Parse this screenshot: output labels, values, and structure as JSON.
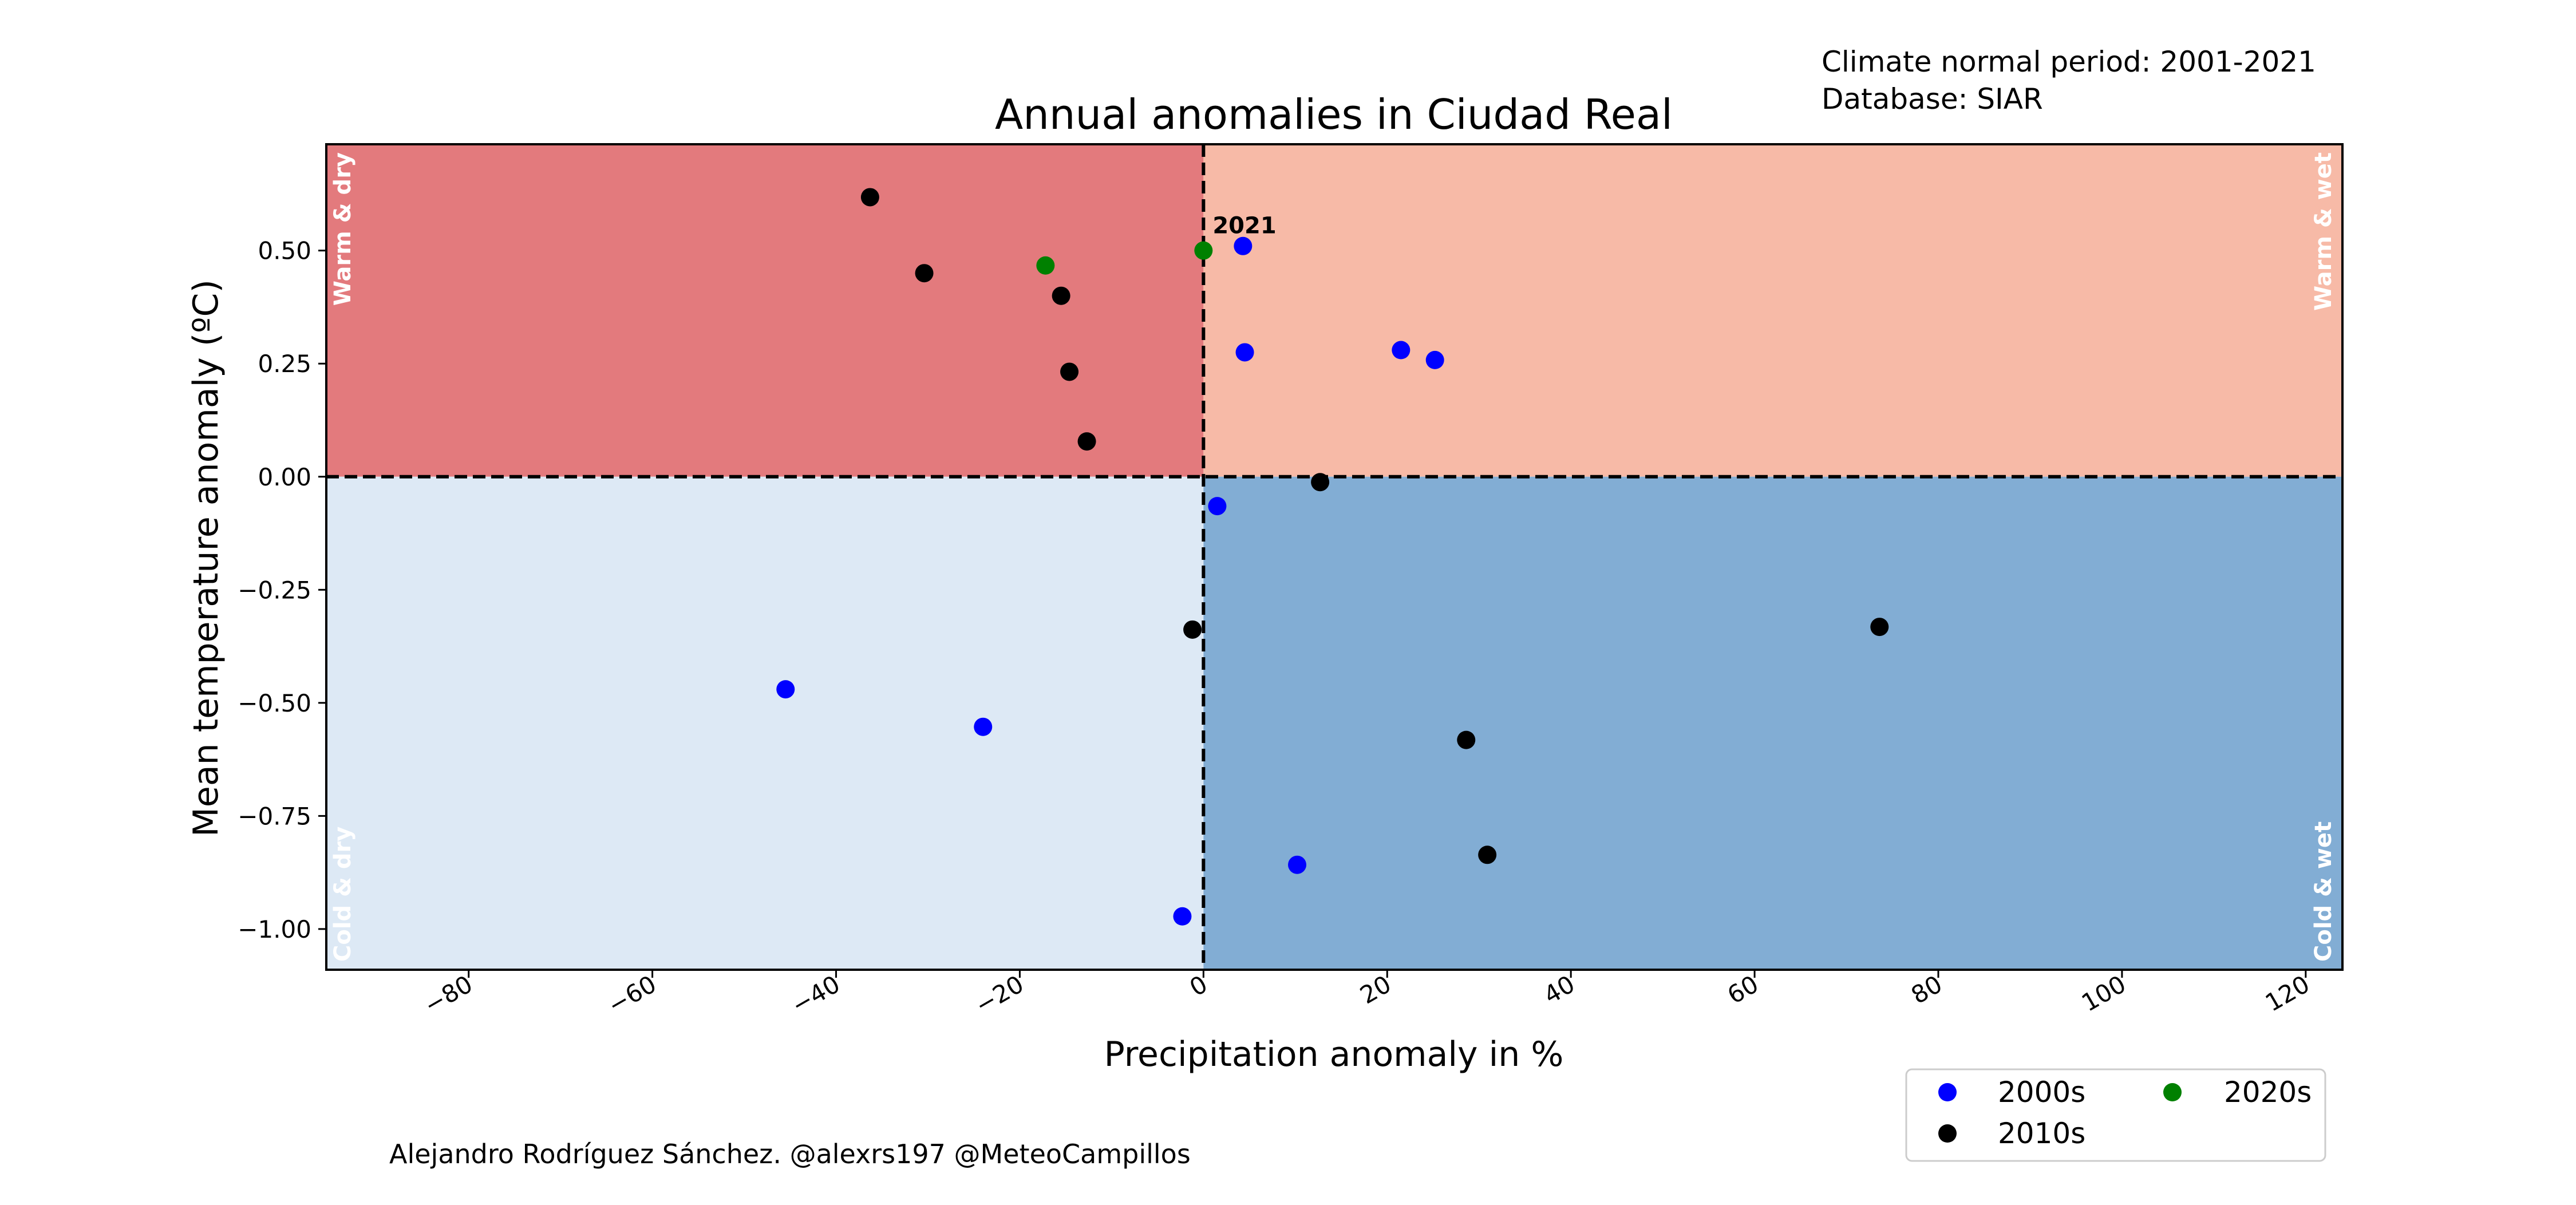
{
  "header": {
    "normal_period": "Climate normal period: 2001-2021",
    "database": "Database: SIAR"
  },
  "credit": "Alejandro Rodríguez Sánchez. @alexrs197 @MeteoCampillos",
  "chart_data": {
    "type": "scatter",
    "title": "Annual anomalies in Ciudad Real",
    "xlabel": "Precipitation anomaly in %",
    "ylabel": "Mean temperature anomaly (ºC)",
    "xlim": [
      -95.5,
      124
    ],
    "ylim": [
      -1.09,
      0.735
    ],
    "x_ticks": [
      -80,
      -60,
      -40,
      -20,
      0,
      20,
      40,
      60,
      80,
      100,
      120
    ],
    "x_tick_labels": [
      "−80",
      "−60",
      "−40",
      "−20",
      "0",
      "20",
      "40",
      "60",
      "80",
      "100",
      "120"
    ],
    "y_ticks": [
      -1.0,
      -0.75,
      -0.5,
      -0.25,
      0.0,
      0.25,
      0.5
    ],
    "y_tick_labels": [
      "−1.00",
      "−0.75",
      "−0.50",
      "−0.25",
      "0.00",
      "0.25",
      "0.50"
    ],
    "grid": false,
    "reference_lines": {
      "x": 0,
      "y": 0,
      "style": "dashed"
    },
    "quadrants": [
      {
        "label": "Warm & dry",
        "color": "#e37a7d",
        "x_side": "negative",
        "y_side": "positive"
      },
      {
        "label": "Warm & wet",
        "color": "#f7baa7",
        "x_side": "positive",
        "y_side": "positive"
      },
      {
        "label": "Cold & dry",
        "color": "#dde9f5",
        "x_side": "negative",
        "y_side": "negative"
      },
      {
        "label": "Cold & wet",
        "color": "#82add4",
        "x_side": "positive",
        "y_side": "negative"
      }
    ],
    "annotation": {
      "text": "2021",
      "x": 0,
      "y": 0.5
    },
    "legend": {
      "position": "below-right",
      "ncol": 2
    },
    "series": [
      {
        "name": "2000s",
        "color": "#0000ff",
        "points": [
          {
            "x": 4.3,
            "y": 0.51
          },
          {
            "x": 4.5,
            "y": 0.275
          },
          {
            "x": 21.5,
            "y": 0.28
          },
          {
            "x": 25.2,
            "y": 0.258
          },
          {
            "x": 1.5,
            "y": -0.065
          },
          {
            "x": -45.5,
            "y": -0.47
          },
          {
            "x": -24.0,
            "y": -0.553
          },
          {
            "x": 10.2,
            "y": -0.858
          },
          {
            "x": -2.3,
            "y": -0.972
          }
        ]
      },
      {
        "name": "2010s",
        "color": "#000000",
        "points": [
          {
            "x": -36.3,
            "y": 0.618
          },
          {
            "x": -30.4,
            "y": 0.45
          },
          {
            "x": -15.5,
            "y": 0.4
          },
          {
            "x": -14.6,
            "y": 0.232
          },
          {
            "x": -12.7,
            "y": 0.078
          },
          {
            "x": 12.7,
            "y": -0.012
          },
          {
            "x": -1.2,
            "y": -0.338
          },
          {
            "x": 73.6,
            "y": -0.332
          },
          {
            "x": 28.6,
            "y": -0.582
          },
          {
            "x": 30.9,
            "y": -0.836
          }
        ]
      },
      {
        "name": "2020s",
        "color": "#008000",
        "points": [
          {
            "x": -17.2,
            "y": 0.467
          },
          {
            "x": 0.0,
            "y": 0.5
          }
        ]
      }
    ]
  }
}
